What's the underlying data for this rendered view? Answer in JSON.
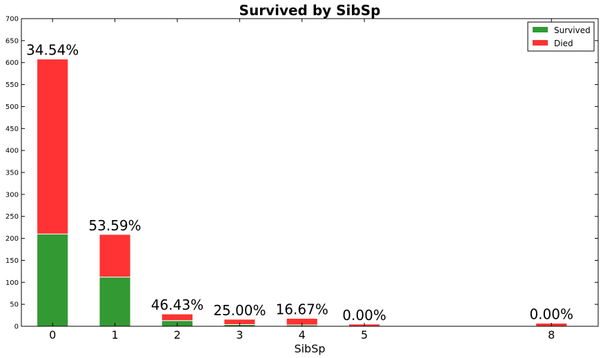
{
  "chart_data": {
    "type": "bar",
    "stacked": true,
    "title": "Survived by SibSp",
    "xlabel": "SibSp",
    "ylabel": "",
    "ylim": [
      0,
      700
    ],
    "yticks": [
      0,
      50,
      100,
      150,
      200,
      250,
      300,
      350,
      400,
      450,
      500,
      550,
      600,
      650,
      700
    ],
    "xlim": [
      -0.5,
      8.75
    ],
    "grid": false,
    "legend_position": "top-right",
    "x": [
      0,
      1,
      2,
      3,
      4,
      5,
      8
    ],
    "categories": [
      "0",
      "1",
      "2",
      "3",
      "4",
      "5",
      "8"
    ],
    "series": [
      {
        "name": "Survived",
        "color": "#339933",
        "values": [
          210,
          112,
          13,
          4,
          3,
          0,
          0
        ]
      },
      {
        "name": "Died",
        "color": "#ff3333",
        "values": [
          398,
          97,
          15,
          12,
          15,
          5,
          7
        ]
      }
    ],
    "annotations": [
      "34.54%",
      "53.59%",
      "46.43%",
      "25.00%",
      "16.67%",
      "0.00%",
      "0.00%"
    ]
  }
}
